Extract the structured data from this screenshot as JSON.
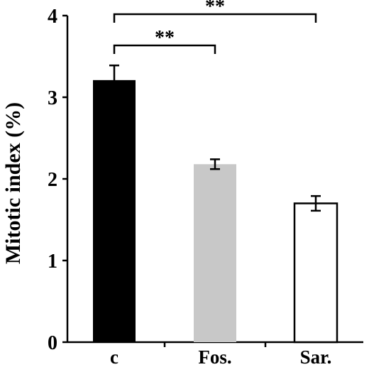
{
  "chart_data": {
    "type": "bar",
    "title": "",
    "xlabel": "",
    "ylabel": "Mitotic index (%)",
    "ylim": [
      0,
      4
    ],
    "yticks": [
      0,
      1,
      2,
      3,
      4
    ],
    "grid": false,
    "categories": [
      "c",
      "Fos.",
      "Sar."
    ],
    "values": [
      3.21,
      2.18,
      1.7
    ],
    "errors": [
      0.18,
      0.06,
      0.09
    ],
    "colors": [
      "#000000",
      "#c8c8c8",
      "#ffffff"
    ],
    "bar_edge_color": "#000000",
    "significance": [
      {
        "from": "c",
        "to": "Fos.",
        "label": "**"
      },
      {
        "from": "c",
        "to": "Sar.",
        "label": "**"
      }
    ]
  }
}
